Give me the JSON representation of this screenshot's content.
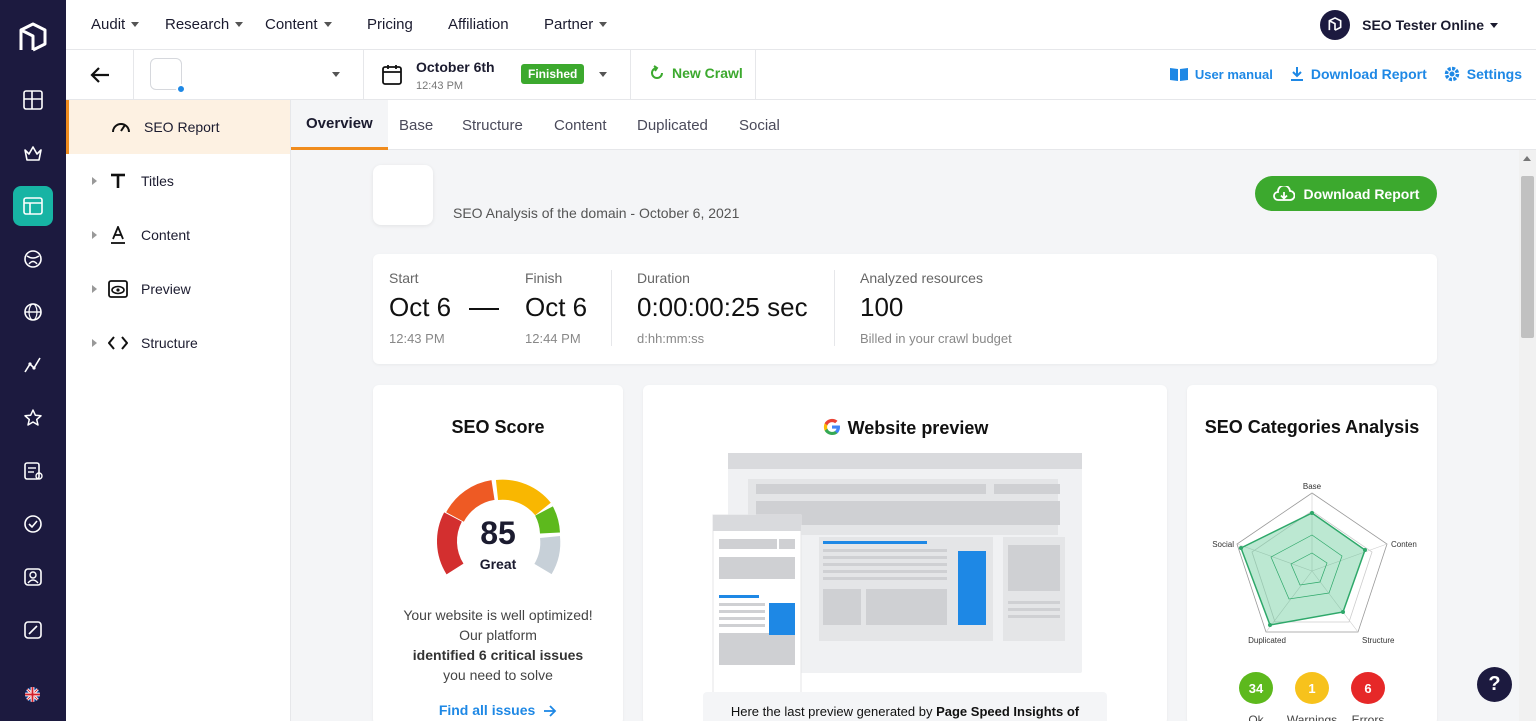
{
  "nav": {
    "items": [
      {
        "label": "Audit",
        "dropdown": true
      },
      {
        "label": "Research",
        "dropdown": true
      },
      {
        "label": "Content",
        "dropdown": true
      },
      {
        "label": "Pricing",
        "dropdown": false
      },
      {
        "label": "Affiliation",
        "dropdown": false
      },
      {
        "label": "Partner",
        "dropdown": true
      }
    ],
    "user_name": "SEO Tester Online"
  },
  "subbar": {
    "date": "October 6th",
    "time": "12:43 PM",
    "status": "Finished",
    "new_crawl": "New Crawl",
    "user_manual": "User manual",
    "download_report": "Download Report",
    "settings": "Settings"
  },
  "sidebar": {
    "items": [
      {
        "label": "SEO Report",
        "icon": "speedometer-icon",
        "active": true
      },
      {
        "label": "Titles",
        "icon": "title-t-icon"
      },
      {
        "label": "Content",
        "icon": "text-format-icon"
      },
      {
        "label": "Preview",
        "icon": "eye-icon"
      },
      {
        "label": "Structure",
        "icon": "code-icon"
      }
    ]
  },
  "tabs": [
    "Overview",
    "Base",
    "Structure",
    "Content",
    "Duplicated",
    "Social"
  ],
  "header": {
    "analysis_title": "SEO Analysis of the domain - October 6, 2021",
    "download_button": "Download Report"
  },
  "stats": {
    "start_label": "Start",
    "start_value": "Oct 6",
    "start_time": "12:43 PM",
    "finish_label": "Finish",
    "finish_value": "Oct 6",
    "finish_time": "12:44 PM",
    "duration_label": "Duration",
    "duration_value": "0:00:00:25 sec",
    "duration_format": "d:hh:mm:ss",
    "resources_label": "Analyzed resources",
    "resources_value": "100",
    "resources_note": "Billed in your crawl budget"
  },
  "score_card": {
    "title": "SEO Score",
    "score": "85",
    "score_value": 85,
    "grade": "Great",
    "desc_1": "Your website is well optimized! Our platform",
    "desc_bold": "identified 6 critical issues",
    "desc_2": "you need to solve",
    "link": "Find all issues"
  },
  "preview_card": {
    "title": "Website preview",
    "caption_prefix": "Here the last preview generated by ",
    "caption_bold": "Page Speed Insights of"
  },
  "categories_card": {
    "title": "SEO Categories Analysis",
    "axes": [
      "Base",
      "Content",
      "Structure",
      "Duplicated",
      "Social"
    ],
    "ok_count": "34",
    "warnings_count": "1",
    "errors_count": "6",
    "ok_label": "Ok",
    "warnings_label": "Warnings",
    "errors_label": "Errors"
  },
  "colors": {
    "green": "#3ca92e",
    "blue": "#1e88e5",
    "orange_accent": "#f08c1e",
    "navy": "#1c1a3f",
    "teal": "#17b4a4",
    "warning": "#f7c21c",
    "error": "#e62828"
  },
  "help_label": "?"
}
